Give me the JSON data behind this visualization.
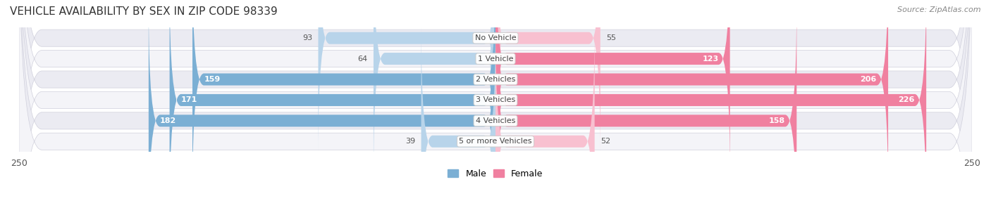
{
  "title": "VEHICLE AVAILABILITY BY SEX IN ZIP CODE 98339",
  "source": "Source: ZipAtlas.com",
  "categories": [
    "No Vehicle",
    "1 Vehicle",
    "2 Vehicles",
    "3 Vehicles",
    "4 Vehicles",
    "5 or more Vehicles"
  ],
  "male_values": [
    93,
    64,
    159,
    171,
    182,
    39
  ],
  "female_values": [
    55,
    123,
    206,
    226,
    158,
    52
  ],
  "male_color_dark": "#7bafd4",
  "male_color_light": "#b8d4ea",
  "female_color_dark": "#f080a0",
  "female_color_light": "#f8c0d0",
  "axis_limit": 250,
  "row_colors": [
    "#ebebf2",
    "#f4f4f8",
    "#ebebf2",
    "#f4f4f8",
    "#ebebf2",
    "#f4f4f8"
  ],
  "bar_height": 0.58,
  "title_fontsize": 11,
  "source_fontsize": 8,
  "value_fontsize": 8,
  "category_fontsize": 8,
  "legend_fontsize": 9,
  "threshold_for_dark": 100
}
